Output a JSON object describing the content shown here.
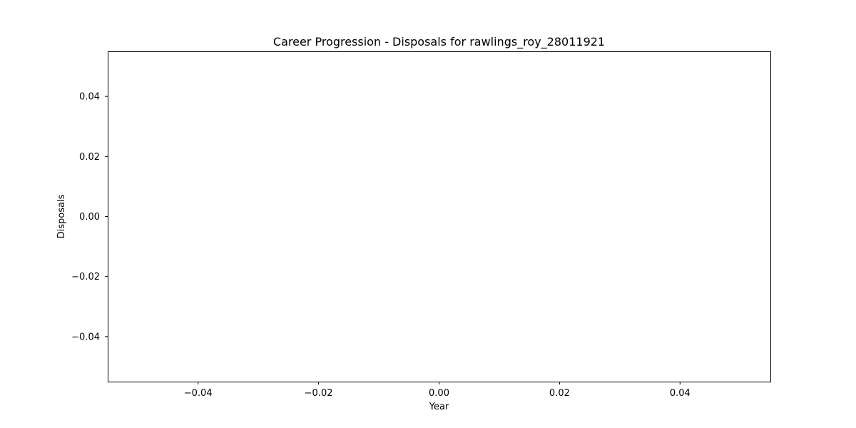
{
  "chart_data": {
    "type": "line",
    "title": "Career Progression - Disposals for rawlings_roy_28011921",
    "xlabel": "Year",
    "ylabel": "Disposals",
    "x": [],
    "series": [
      {
        "values": []
      }
    ],
    "xlim": [
      -0.055,
      0.055
    ],
    "ylim": [
      -0.055,
      0.055
    ],
    "xticks": [
      -0.04,
      -0.02,
      0.0,
      0.02,
      0.04
    ],
    "yticks": [
      -0.04,
      -0.02,
      0.0,
      0.02,
      0.04
    ],
    "xtick_labels": [
      "−0.04",
      "−0.02",
      "0.00",
      "0.02",
      "0.04"
    ],
    "ytick_labels": [
      "−0.04",
      "−0.02",
      "0.00",
      "0.02",
      "0.04"
    ],
    "grid": false,
    "legend": false
  }
}
